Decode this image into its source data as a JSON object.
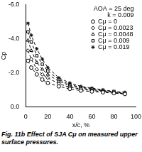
{
  "chart_data": {
    "type": "line",
    "title": "AOA = 25 deg",
    "subtitle": "k = 0.009",
    "x_label": "x/c, %",
    "y_label": "Cp",
    "x": [
      2,
      5,
      10,
      15,
      20,
      30,
      40,
      50,
      60,
      70,
      80,
      90
    ],
    "series": [
      {
        "name": "Cμ = 0",
        "color": "#000000",
        "marker": "circle",
        "line_style": "dashed",
        "values": [
          -2.7,
          -2.3,
          -1.9,
          -1.6,
          -1.4,
          -1.2,
          -1.05,
          -0.95,
          -0.9,
          -0.85,
          -0.8,
          -0.75
        ]
      },
      {
        "name": "Cμ = 0.0023",
        "color": "#000000",
        "marker": "diamond",
        "line_style": "dashed",
        "values": [
          -3.3,
          -2.8,
          -2.2,
          -1.9,
          -1.7,
          -1.35,
          -1.15,
          -1.05,
          -0.95,
          -0.9,
          -0.85,
          -0.75
        ]
      },
      {
        "name": "Cμ = 0.0048",
        "color": "#000000",
        "marker": "triangle",
        "line_style": "dashed",
        "values": [
          -3.9,
          -3.3,
          -2.6,
          -2.2,
          -1.9,
          -1.5,
          -1.25,
          -1.1,
          -1.0,
          -0.95,
          -0.85,
          -0.8
        ]
      },
      {
        "name": "Cμ = 0.009",
        "color": "#000000",
        "marker": "square",
        "line_style": "dashed",
        "values": [
          -4.4,
          -3.8,
          -3.0,
          -2.5,
          -2.1,
          -1.6,
          -1.3,
          -1.15,
          -1.05,
          -0.95,
          -0.9,
          -0.8
        ]
      },
      {
        "name": "Cμ = 0.019",
        "color": "#000000",
        "marker": "star",
        "line_style": "dashed",
        "values": [
          -4.9,
          -4.2,
          -3.4,
          -2.8,
          -2.3,
          -1.7,
          -1.4,
          -1.2,
          -1.1,
          -1.0,
          -0.9,
          -0.85
        ]
      }
    ],
    "xlim": [
      0,
      100
    ],
    "xticks": [
      0,
      20,
      40,
      60,
      80,
      100
    ],
    "ylim": [
      0,
      -6
    ],
    "yticks": [
      {
        "value": 0,
        "label": "0.0"
      },
      {
        "value": -2,
        "label": "-2.0"
      },
      {
        "value": -4,
        "label": "-4.0"
      },
      {
        "value": -6,
        "label": "-6.0"
      }
    ],
    "grid": false,
    "legend": "top right"
  },
  "caption": "Fig. 11b Effect of SJA Cμ on measured upper surface pressures."
}
